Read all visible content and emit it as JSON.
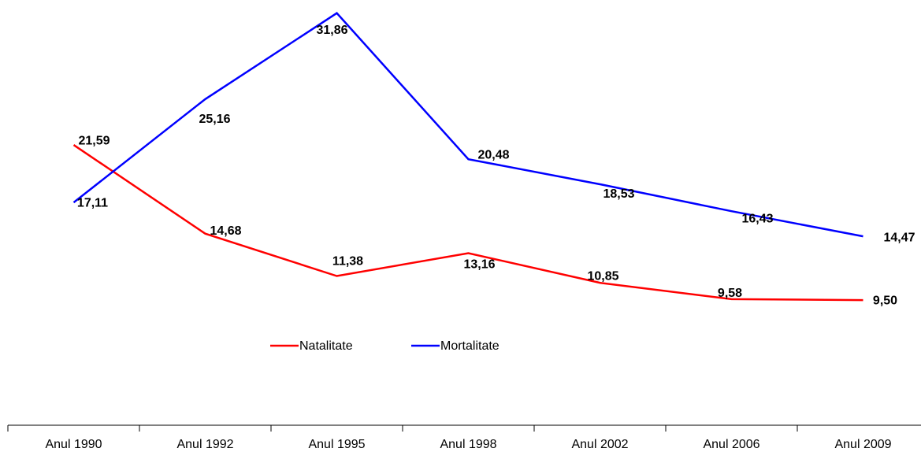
{
  "chart_data": {
    "type": "line",
    "categories": [
      "Anul 1990",
      "Anul 1992",
      "Anul 1995",
      "Anul 1998",
      "Anul 2002",
      "Anul 2006",
      "Anul 2009"
    ],
    "series": [
      {
        "name": "Natalitate",
        "color": "#ff0000",
        "values": [
          21.59,
          14.68,
          11.38,
          13.16,
          10.85,
          9.58,
          9.5
        ],
        "value_labels": [
          "21,59",
          "14,68",
          "11,38",
          "13,16",
          "10,85",
          "9,58",
          "9,50"
        ]
      },
      {
        "name": "Mortalitate",
        "color": "#0000ff",
        "values": [
          17.11,
          25.16,
          31.86,
          20.48,
          18.53,
          16.43,
          14.47
        ],
        "value_labels": [
          "17,11",
          "25,16",
          "31,86",
          "20,48",
          "18,53",
          "16,43",
          "14,47"
        ]
      }
    ]
  }
}
